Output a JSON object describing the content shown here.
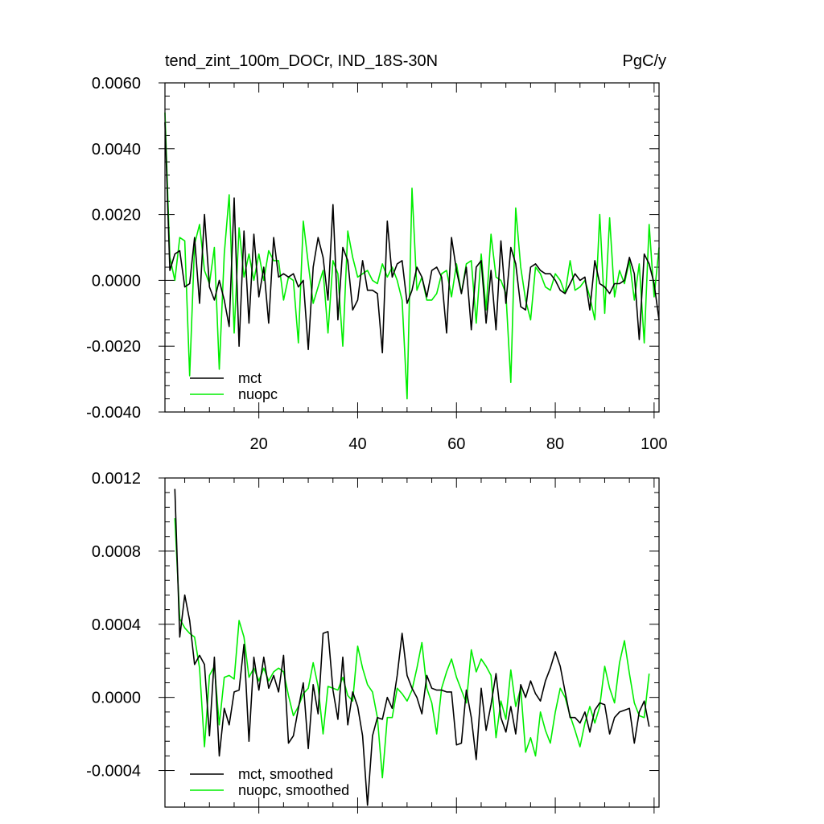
{
  "chart_data": [
    {
      "type": "line",
      "title": "tend_zint_100m_DOCr, IND_18S-30N",
      "units": "PgC/y",
      "xlim": [
        1,
        101
      ],
      "ylim": [
        -0.004,
        0.006
      ],
      "xticks": [
        20,
        40,
        60,
        80,
        100
      ],
      "xtick_labels": [
        "20",
        "40",
        "60",
        "80",
        "100"
      ],
      "yticks": [
        -0.004,
        -0.002,
        0.0,
        0.002,
        0.004,
        0.006
      ],
      "ytick_labels": [
        "-0.0040",
        "-0.0020",
        "0.0000",
        "0.0020",
        "0.0040",
        "0.0060"
      ],
      "legend_position": "bottom-left",
      "series": [
        {
          "name": "mct",
          "color": "#000000",
          "x": [
            1,
            2,
            3,
            4,
            5,
            6,
            7,
            8,
            9,
            10,
            11,
            12,
            13,
            14,
            15,
            16,
            17,
            18,
            19,
            20,
            21,
            22,
            23,
            24,
            25,
            26,
            27,
            28,
            29,
            30,
            31,
            32,
            33,
            34,
            35,
            36,
            37,
            38,
            39,
            40,
            41,
            42,
            43,
            44,
            45,
            46,
            47,
            48,
            49,
            50,
            51,
            52,
            53,
            54,
            55,
            56,
            57,
            58,
            59,
            60,
            61,
            62,
            63,
            64,
            65,
            66,
            67,
            68,
            69,
            70,
            71,
            72,
            73,
            74,
            75,
            76,
            77,
            78,
            79,
            80,
            81,
            82,
            83,
            84,
            85,
            86,
            87,
            88,
            89,
            90,
            91,
            92,
            93,
            94,
            95,
            96,
            97,
            98,
            99,
            100,
            101
          ],
          "values": [
            0.0048,
            0.0003,
            0.0008,
            0.0009,
            -0.0002,
            -0.0001,
            0.0013,
            -0.0007,
            0.002,
            -0.0002,
            -0.0006,
            0.0,
            -0.0006,
            -0.0014,
            0.0025,
            -0.002,
            0.0015,
            -0.0013,
            0.0014,
            -0.0005,
            0.0004,
            -0.0013,
            0.0013,
            0.0001,
            0.0002,
            0.0001,
            0.0002,
            -0.0002,
            0.0,
            -0.0021,
            0.0004,
            0.0013,
            0.0007,
            -0.0006,
            0.0023,
            -0.0012,
            0.001,
            0.0006,
            -0.0009,
            -0.0006,
            0.0006,
            -0.0003,
            -0.0003,
            -0.0004,
            -0.0022,
            0.0018,
            0.0001,
            0.0005,
            0.0006,
            -0.0007,
            -0.0003,
            0.0004,
            0.0001,
            -0.0005,
            0.0003,
            0.0004,
            0.0001,
            -0.0016,
            0.0013,
            0.0003,
            -0.0004,
            0.0004,
            -0.0015,
            0.0004,
            0.0006,
            -0.0013,
            0.0003,
            -0.0015,
            0.0012,
            -0.0007,
            0.001,
            0.0005,
            -0.0008,
            -0.0009,
            0.0004,
            0.0005,
            0.0003,
            0.0002,
            0.0002,
            0.0,
            -0.0003,
            -0.0004,
            -0.0001,
            0.0002,
            0.0,
            0.0001,
            -0.0009,
            0.0006,
            -0.0001,
            -0.0002,
            -0.0004,
            -0.0001,
            -0.0001,
            0.0,
            0.0007,
            0.0002,
            -0.0018,
            0.0008,
            0.0005,
            -0.0001,
            -0.0012
          ]
        },
        {
          "name": "nuopc",
          "color": "#00ee00",
          "x": [
            1,
            2,
            3,
            4,
            5,
            6,
            7,
            8,
            9,
            10,
            11,
            12,
            13,
            14,
            15,
            16,
            17,
            18,
            19,
            20,
            21,
            22,
            23,
            24,
            25,
            26,
            27,
            28,
            29,
            30,
            31,
            32,
            33,
            34,
            35,
            36,
            37,
            38,
            39,
            40,
            41,
            42,
            43,
            44,
            45,
            46,
            47,
            48,
            49,
            50,
            51,
            52,
            53,
            54,
            55,
            56,
            57,
            58,
            59,
            60,
            61,
            62,
            63,
            64,
            65,
            66,
            67,
            68,
            69,
            70,
            71,
            72,
            73,
            74,
            75,
            76,
            77,
            78,
            79,
            80,
            81,
            82,
            83,
            84,
            85,
            86,
            87,
            88,
            89,
            90,
            91,
            92,
            93,
            94,
            95,
            96,
            97,
            98,
            99,
            100,
            101
          ],
          "values": [
            0.0051,
            0.0007,
            0.0,
            0.0013,
            0.0012,
            -0.0029,
            0.0011,
            0.0017,
            0.0003,
            -0.0001,
            0.001,
            -0.0027,
            0.0008,
            0.0026,
            -0.0016,
            0.0016,
            0.0001,
            0.0008,
            0.0,
            0.0008,
            0.0,
            0.0009,
            0.0006,
            0.0006,
            -0.0006,
            0.0001,
            0.0,
            -0.0019,
            0.0018,
            0.0005,
            -0.0007,
            -0.0002,
            0.0003,
            -0.0016,
            0.0006,
            0.0002,
            -0.002,
            0.0015,
            0.0007,
            0.0001,
            0.0002,
            0.0003,
            0.0,
            -0.0001,
            0.0005,
            0.0001,
            0.0004,
            0.0,
            -0.0006,
            -0.0036,
            0.0028,
            -0.0003,
            0.0001,
            -0.0006,
            -0.0006,
            -0.0004,
            0.0002,
            0.0003,
            -0.0005,
            0.0005,
            -0.0004,
            0.0005,
            0.0006,
            -0.0013,
            0.0008,
            -0.0009,
            0.0014,
            0.0001,
            0.0,
            -0.0004,
            -0.0031,
            0.0022,
            0.0004,
            -0.0006,
            -0.0012,
            0.0004,
            0.0002,
            -0.0002,
            -0.0003,
            0.0002,
            0.0,
            -0.0004,
            0.0006,
            -0.0003,
            -0.0002,
            0.0,
            -0.0005,
            -0.0012,
            0.002,
            -0.001,
            0.0019,
            -0.0005,
            0.0003,
            -0.0001,
            0.0006,
            -0.0006,
            0.0005,
            -0.0019,
            0.0017,
            -0.0005,
            0.001
          ]
        }
      ]
    },
    {
      "type": "line",
      "xlim": [
        1,
        101
      ],
      "ylim": [
        -0.0006,
        0.0012
      ],
      "xticks": [
        20,
        40,
        60,
        80,
        100
      ],
      "yticks": [
        -0.0004,
        0.0,
        0.0004,
        0.0008,
        0.0012
      ],
      "ytick_labels": [
        "-0.0004",
        "0.0000",
        "0.0004",
        "0.0008",
        "0.0012"
      ],
      "legend_position": "bottom-left",
      "series": [
        {
          "name": "mct, smoothed",
          "color": "#000000",
          "x": [
            3,
            4,
            5,
            6,
            7,
            8,
            9,
            10,
            11,
            12,
            13,
            14,
            15,
            16,
            17,
            18,
            19,
            20,
            21,
            22,
            23,
            24,
            25,
            26,
            27,
            28,
            29,
            30,
            31,
            32,
            33,
            34,
            35,
            36,
            37,
            38,
            39,
            40,
            41,
            42,
            43,
            44,
            45,
            46,
            47,
            48,
            49,
            50,
            51,
            52,
            53,
            54,
            55,
            56,
            57,
            58,
            59,
            60,
            61,
            62,
            63,
            64,
            65,
            66,
            67,
            68,
            69,
            70,
            71,
            72,
            73,
            74,
            75,
            76,
            77,
            78,
            79,
            80,
            81,
            82,
            83,
            84,
            85,
            86,
            87,
            88,
            89,
            90,
            91,
            92,
            93,
            94,
            95,
            96,
            97,
            98,
            99
          ],
          "values": [
            0.00114,
            0.00033,
            0.00056,
            0.00042,
            0.00018,
            0.00023,
            0.00018,
            -0.00021,
            0.00022,
            -0.00032,
            -6e-05,
            -0.00015,
            3e-05,
            4e-05,
            0.00029,
            -0.00024,
            0.00022,
            4e-05,
            0.00022,
            5e-05,
            0.00012,
            3e-05,
            0.00023,
            -0.00025,
            -0.00021,
            -6e-05,
            8e-05,
            -0.00028,
            7e-05,
            -9e-05,
            0.00035,
            0.00036,
            4e-05,
            -0.00012,
            0.00022,
            -0.00015,
            3e-05,
            -5e-05,
            -0.00021,
            -0.00059,
            -0.00021,
            -0.00011,
            -0.00012,
            0.0,
            -6e-05,
            0.00012,
            0.00035,
            0.00012,
            5e-05,
            0.0,
            -9e-05,
            0.00012,
            5e-05,
            4e-05,
            4e-05,
            3e-05,
            3e-05,
            -0.00026,
            -0.00025,
            4e-05,
            -0.00011,
            -0.00034,
            5e-05,
            -0.00018,
            -4e-05,
            0.00013,
            -0.00011,
            -0.00019,
            -5e-05,
            -0.0002,
            7e-05,
            0.0,
            9e-05,
            2e-05,
            -2e-05,
            9e-05,
            0.00016,
            0.00025,
            0.00017,
            3e-05,
            -0.00011,
            -0.00011,
            -0.00014,
            -8e-05,
            -0.00019,
            -7e-05,
            -3e-05,
            -4e-05,
            -0.0002,
            -0.00011,
            -8e-05,
            -7e-05,
            -6e-05,
            -0.00025,
            -8e-05,
            -2e-05,
            -0.00016
          ]
        },
        {
          "name": "nuopc, smoothed",
          "color": "#00ee00",
          "x": [
            3,
            4,
            5,
            6,
            7,
            8,
            9,
            10,
            11,
            12,
            13,
            14,
            15,
            16,
            17,
            18,
            19,
            20,
            21,
            22,
            23,
            24,
            25,
            26,
            27,
            28,
            29,
            30,
            31,
            32,
            33,
            34,
            35,
            36,
            37,
            38,
            39,
            40,
            41,
            42,
            43,
            44,
            45,
            46,
            47,
            48,
            49,
            50,
            51,
            52,
            53,
            54,
            55,
            56,
            57,
            58,
            59,
            60,
            61,
            62,
            63,
            64,
            65,
            66,
            67,
            68,
            69,
            70,
            71,
            72,
            73,
            74,
            75,
            76,
            77,
            78,
            79,
            80,
            81,
            82,
            83,
            84,
            85,
            86,
            87,
            88,
            89,
            90,
            91,
            92,
            93,
            94,
            95,
            96,
            97,
            98,
            99
          ],
          "values": [
            0.00098,
            0.00043,
            0.00038,
            0.00035,
            0.00033,
            0.00016,
            -0.00027,
            0.00012,
            0.00017,
            -0.00015,
            0.00011,
            0.00012,
            0.0001,
            0.00042,
            0.00033,
            0.00011,
            0.00016,
            9e-05,
            0.00016,
            9e-05,
            0.00014,
            0.00016,
            0.00014,
            1e-05,
            -0.0001,
            -5e-05,
            2e-05,
            5e-05,
            0.00019,
            6e-05,
            -0.0002,
            6e-05,
            5e-05,
            4e-05,
            0.00011,
            1e-05,
            -2e-05,
            0.00028,
            0.00016,
            7e-05,
            3e-05,
            -0.00011,
            -0.00044,
            -0.00011,
            -0.00011,
            5e-05,
            2e-05,
            -2e-05,
            4e-05,
            0.00016,
            0.0003,
            5e-05,
            -3e-05,
            -0.0002,
            5e-05,
            0.00014,
            0.00021,
            0.00011,
            4e-05,
            -3e-05,
            0.00026,
            0.00014,
            0.00021,
            0.00017,
            0.00012,
            -0.00022,
            -2e-05,
            -0.00012,
            0.00015,
            -5e-05,
            5e-05,
            -0.0003,
            -0.00022,
            -0.00032,
            -8e-05,
            -0.00018,
            -0.00025,
            -8e-05,
            5e-05,
            0.0,
            -0.0001,
            -0.00018,
            -0.00027,
            -0.00014,
            -5e-05,
            -0.00014,
            -5e-05,
            0.00017,
            5e-05,
            -3e-05,
            0.00019,
            0.00031,
            0.00013,
            -3e-05,
            -0.0001,
            -0.00011,
            0.00013
          ]
        }
      ]
    }
  ]
}
